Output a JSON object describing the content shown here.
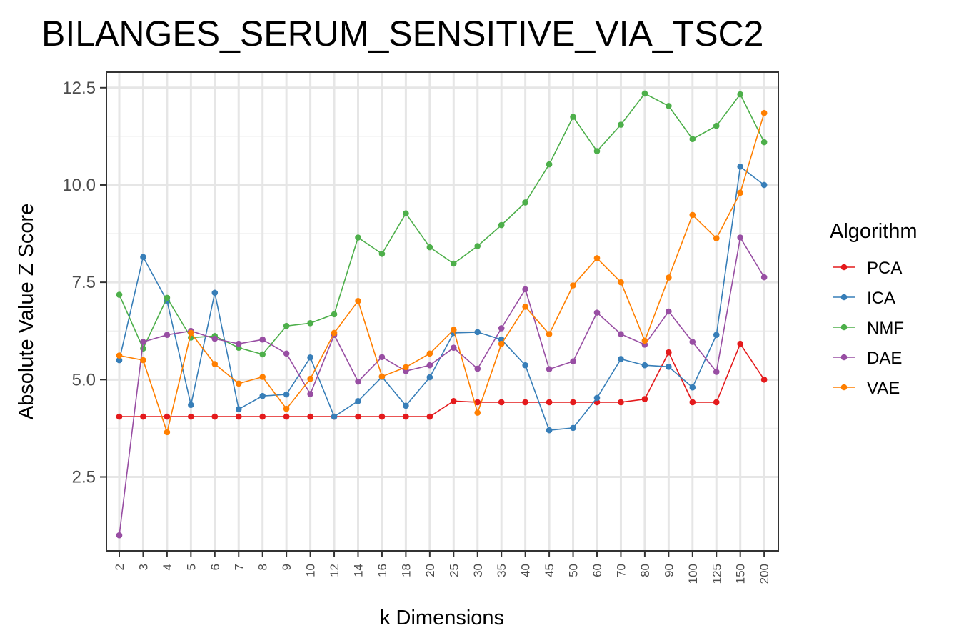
{
  "chart_data": {
    "type": "line",
    "title": "BILANGES_SERUM_SENSITIVE_VIA_TSC2",
    "xlabel": "k Dimensions",
    "ylabel": "Absolute Value Z Score",
    "categories": [
      "2",
      "3",
      "4",
      "5",
      "6",
      "7",
      "8",
      "9",
      "10",
      "12",
      "14",
      "16",
      "18",
      "20",
      "25",
      "30",
      "35",
      "40",
      "45",
      "50",
      "60",
      "70",
      "80",
      "90",
      "100",
      "125",
      "150",
      "200"
    ],
    "yticks": [
      2.5,
      5.0,
      7.5,
      10.0,
      12.5
    ],
    "ytick_labels": [
      "2.5",
      "5.0",
      "7.5",
      "10.0",
      "12.5"
    ],
    "ylim": [
      0.6,
      12.9
    ],
    "grid": true,
    "legend": {
      "title": "Algorithm",
      "position": "right"
    },
    "series": [
      {
        "name": "PCA",
        "color": "#E41A1C",
        "values": [
          4.05,
          4.05,
          4.05,
          4.05,
          4.05,
          4.05,
          4.05,
          4.05,
          4.05,
          4.05,
          4.05,
          4.05,
          4.05,
          4.05,
          4.45,
          4.42,
          4.42,
          4.42,
          4.42,
          4.42,
          4.42,
          4.42,
          4.5,
          5.7,
          4.42,
          4.42,
          5.92,
          5.0
        ]
      },
      {
        "name": "ICA",
        "color": "#377EB8",
        "values": [
          5.5,
          8.15,
          7.02,
          4.35,
          7.23,
          4.24,
          4.58,
          4.62,
          5.57,
          4.05,
          4.45,
          5.07,
          4.33,
          5.06,
          6.2,
          6.22,
          6.03,
          5.37,
          3.7,
          3.76,
          4.53,
          5.53,
          5.37,
          5.33,
          4.8,
          6.15,
          10.47,
          10.0
        ]
      },
      {
        "name": "NMF",
        "color": "#4DAF4A",
        "values": [
          7.18,
          5.8,
          7.1,
          6.08,
          6.12,
          5.82,
          5.65,
          6.38,
          6.45,
          6.68,
          8.65,
          8.23,
          9.27,
          8.4,
          7.98,
          8.43,
          8.97,
          9.55,
          10.53,
          11.75,
          10.87,
          11.55,
          12.35,
          12.03,
          11.18,
          11.52,
          12.33,
          11.1
        ]
      },
      {
        "name": "DAE",
        "color": "#984EA3",
        "values": [
          1.0,
          5.97,
          6.15,
          6.25,
          6.05,
          5.92,
          6.03,
          5.67,
          4.63,
          6.15,
          4.95,
          5.58,
          5.22,
          5.37,
          5.82,
          5.28,
          6.32,
          7.32,
          5.27,
          5.47,
          6.72,
          6.17,
          5.9,
          6.75,
          5.97,
          5.2,
          8.65,
          7.63
        ]
      },
      {
        "name": "VAE",
        "color": "#FF7F00",
        "values": [
          5.62,
          5.5,
          3.65,
          6.2,
          5.4,
          4.9,
          5.07,
          4.25,
          5.02,
          6.2,
          7.02,
          5.08,
          5.32,
          5.67,
          6.28,
          4.15,
          5.92,
          6.87,
          6.17,
          7.42,
          8.12,
          7.5,
          6.0,
          7.62,
          9.23,
          8.63,
          9.8,
          11.85
        ]
      }
    ]
  }
}
